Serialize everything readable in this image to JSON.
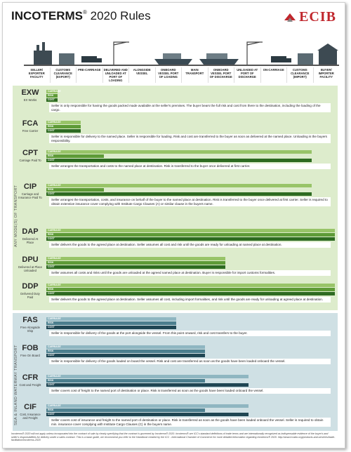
{
  "header": {
    "title_bold": "INCOTERMS",
    "title_reg": "®",
    "title_rest": " 2020 Rules",
    "brand": "ECIB"
  },
  "columns": [
    "SELLER/ EXPORTER FACILITY",
    "CUSTOMS CLEARANCE (EXPORT)",
    "PRE-CARRIAGE",
    "DELIVERED AND UNLOADED AT PORT OF LOADING",
    "ALONGSIDE VESSEL",
    "ONBOARD VESSEL PORT OF LOADING",
    "MAIN TRANSPORT",
    "ONBOARD VESSEL PORT OF DISCHARGE",
    "UNLOADED AT PORT OF DISCHARGE",
    "ON-CARRIAGE",
    "CUSTOMS CLEARANCE (IMPORT)",
    "BUYER/ IMPORTER FACILITY"
  ],
  "bar_labels": {
    "carriage": "CARRIAGE",
    "risk": "RISK",
    "cost": "COST"
  },
  "sections": {
    "any_mode": "ANY MODE(S) OF TRANSPORT",
    "sea": "SEA & INLAND WATERWAY TRANSPORT"
  },
  "colors": {
    "carriage_any": "#98c468",
    "risk_any": "#5e9b37",
    "cost_any": "#2e6b21",
    "carriage_sea": "#8fb6c1",
    "risk_sea": "#4c7f8e",
    "cost_sea": "#1f4653",
    "bg_any": "#ddeccc",
    "bg_sea": "#cfe0e4",
    "brand_red": "#c0272d"
  },
  "terms": [
    {
      "code": "EXW",
      "name": "EX Works",
      "carriage": 0.04,
      "risk": 0.04,
      "cost": 0.04,
      "desc": "Seller is only responsible for having the goods packed made available at the seller's premises. The buyer bears the full risk and cost from there to the destination, including the loading of the cargo."
    },
    {
      "code": "FCA",
      "name": "Free Carrier",
      "carriage": 0.12,
      "risk": 0.12,
      "cost": 0.12,
      "desc": "Seller is responsible for delivery to the named place. Seller is responsible for loading. Risk and cost are transferred to the buyer as soon as delivered at the named place. Unloading is the buyers responsibility."
    },
    {
      "code": "CPT",
      "name": "Carriage Paid To",
      "carriage": 0.92,
      "risk": 0.2,
      "cost": 0.92,
      "desc": "Seller arranges the transportation and costs to the named place at destination. Risk is transferred to the buyer once delivered at first carrier."
    },
    {
      "code": "CIP",
      "name": "Carriage and Insurance Paid To",
      "carriage": 0.92,
      "risk": 0.2,
      "cost": 0.92,
      "desc": "Seller arranges the transportation, costs, and insurance on behalf of the buyer to the named place at destination. Risk is transferred to the buyer once delivered at first carrier. Seller is required to obtain extensive insurance cover complying with Institute Cargo Clauses (A) or similar clause in the buyers name."
    },
    {
      "code": "DAP",
      "name": "Delivered At Place",
      "carriage": 1.0,
      "risk": 1.0,
      "cost": 1.0,
      "desc": "Seller delivers the goods to the agreed place at destination. Seller assumes all cost and risk until the goods are ready for unloading at named place at destination."
    },
    {
      "code": "DPU",
      "name": "Delivered at Place Unloaded",
      "carriage": 0.62,
      "risk": 0.62,
      "cost": 0.62,
      "desc": "Seller assumes all costs and risks until the goods are unloaded at the agreed named place at destination. Buyer is responsible for import customs formalities."
    },
    {
      "code": "DDP",
      "name": "Delivered Duty Paid",
      "carriage": 1.0,
      "risk": 1.0,
      "cost": 1.0,
      "desc": "Seller delivers the goods to the agreed place at destination. Seller assumes all cost, including import formalities, and risk until the goods are ready for unloading at agreed place at destination."
    },
    {
      "code": "FAS",
      "name": "Free Alongside Ship",
      "carriage": 0.45,
      "risk": 0.45,
      "cost": 0.45,
      "desc": "Seller is responsible for delivery of the goods at the port alongside the vessel. From this point onward, risk and cost transfers to the buyer."
    },
    {
      "code": "FOB",
      "name": "Free On Board",
      "carriage": 0.55,
      "risk": 0.55,
      "cost": 0.55,
      "desc": "Seller is responsible for delivery of the goods loaded on board the vessel. Risk and cost are transferred as soon as the goods have been loaded onboard the vessel."
    },
    {
      "code": "CFR",
      "name": "Cost and Freight",
      "carriage": 0.7,
      "risk": 0.55,
      "cost": 0.7,
      "desc": "Seller covers cost of freight to the named port of destination or place. Risk is transferred as soon as the goods have been loaded onboard the vessel."
    },
    {
      "code": "CIF",
      "name": "Cost, Insurance and Freight",
      "carriage": 0.7,
      "risk": 0.55,
      "cost": 0.7,
      "desc": "Seller covers cost of insurance and freight to the named port of destination or place. Risk is transferred as soon as the goods have been loaded onboard the vessel. Seller is required to obtain min. insurance cover complying with Institute Cargo Clauses (C) in the buyers name."
    }
  ],
  "footer": "Incoterms® 2020 will not apply unless incorporated into the contract of sale by clearly specifying that the contract is governed by Incoterms® 2020. Incoterms® are ICC's standard definitions of trade terms and are internationally recognized as indispensable evidence of the buyer's and seller's responsibilities for delivery under a sales contract. This is a basic guide, we recommend you refer to the Handbook created by the ICC - International Chamber of Commerce for more detailed information regarding Incoterms® 2020. http://www.iccwbo.org/products-and-services/trade-facilitation/incoterms-2020"
}
